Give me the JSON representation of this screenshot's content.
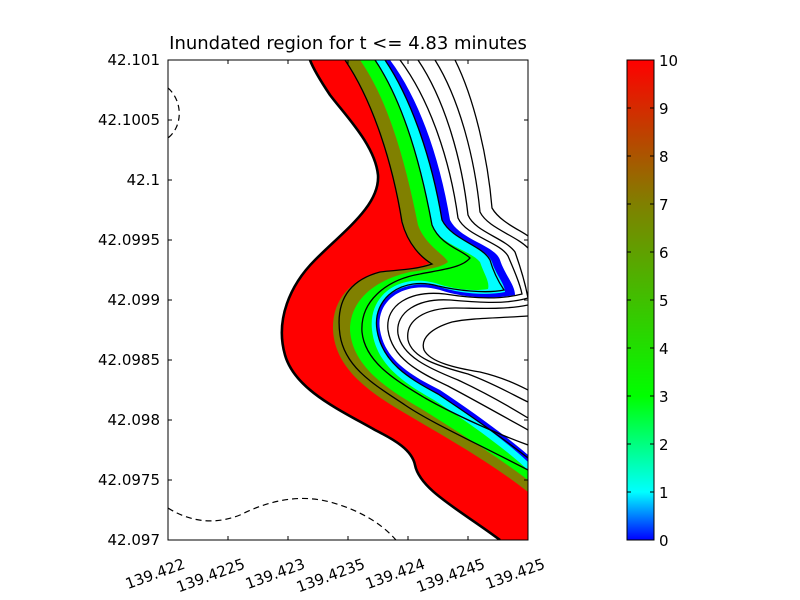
{
  "chart_data": {
    "type": "heatmap",
    "title": "Inundated region for t <=  4.83 minutes",
    "xlabel": "",
    "ylabel": "",
    "xlim": [
      139.422,
      139.425
    ],
    "ylim": [
      42.097,
      42.101
    ],
    "x_ticks": [
      "139.422",
      "139.4225",
      "139.423",
      "139.4235",
      "139.424",
      "139.4245",
      "139.425"
    ],
    "x_tick_values": [
      139.422,
      139.4225,
      139.423,
      139.4235,
      139.424,
      139.4245,
      139.425
    ],
    "y_ticks": [
      "42.097",
      "42.0975",
      "42.098",
      "42.0985",
      "42.099",
      "42.0995",
      "42.1",
      "42.1005",
      "42.101"
    ],
    "y_tick_values": [
      42.097,
      42.0975,
      42.098,
      42.0985,
      42.099,
      42.0995,
      42.1,
      42.1005,
      42.101
    ],
    "colorbar": {
      "min": 0,
      "max": 10,
      "ticks": [
        "0",
        "1",
        "2",
        "3",
        "4",
        "5",
        "6",
        "7",
        "8",
        "9",
        "10"
      ],
      "tick_values": [
        0,
        1,
        2,
        3,
        4,
        5,
        6,
        7,
        8,
        9,
        10
      ],
      "colormap": [
        "#0000ff",
        "#00ffff",
        "#00ff00",
        "#808000",
        "#ff0000"
      ]
    },
    "fill_colors": {
      "high": "#ff0000",
      "mid": "#808000",
      "low_green": "#00ff00",
      "low_cyan": "#00ffff",
      "lowest": "#0000ff"
    },
    "grid": false
  }
}
